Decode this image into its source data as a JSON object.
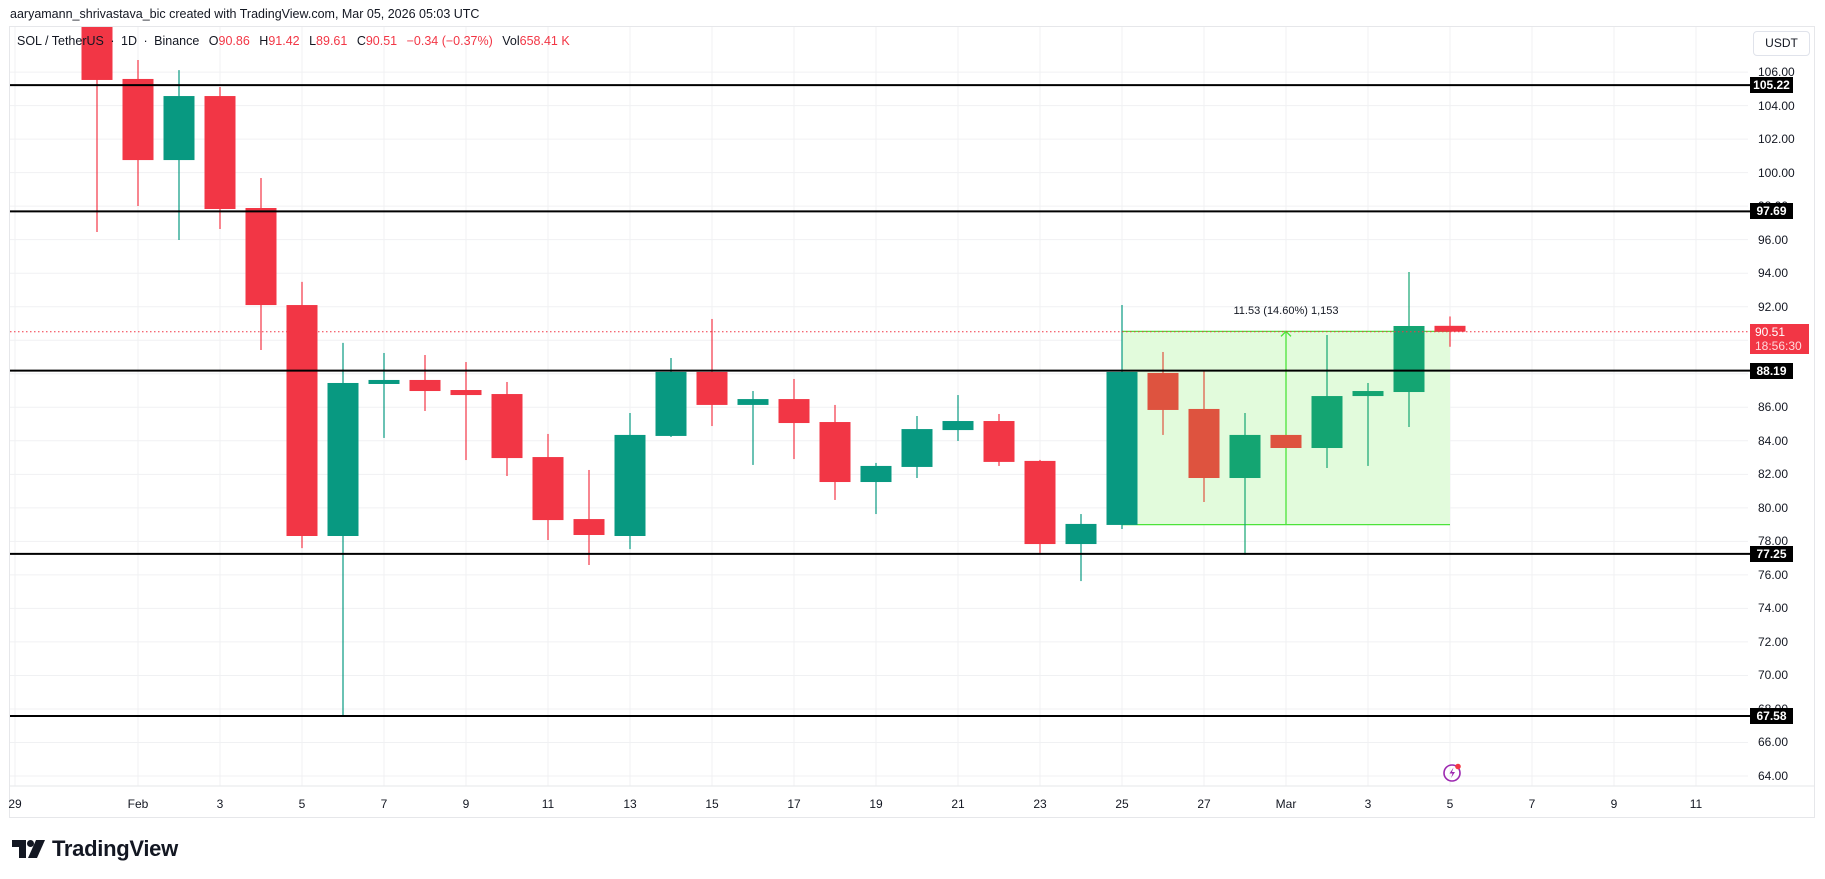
{
  "header": {
    "credit": "aaryamann_shrivastava_bic created with TradingView.com, Mar 05, 2026 05:03 UTC",
    "symbol": "SOL / TetherUS",
    "interval": "1D",
    "exchange": "Binance",
    "open_label": "O",
    "open": "90.86",
    "high_label": "H",
    "high": "91.42",
    "low_label": "L",
    "low": "89.61",
    "close_label": "C",
    "close": "90.51",
    "change": "−0.34 (−0.37%)",
    "vol_label": "Vol",
    "vol": "658.41 K",
    "separator": "·"
  },
  "price_axis": {
    "currency_button": "USDT",
    "last_price": "90.51",
    "countdown": "18:56:30"
  },
  "measure": {
    "label": "11.53 (14.60%) 1,153"
  },
  "logo": {
    "text": "TradingView"
  },
  "colors": {
    "up": "#089981",
    "down": "#f23645",
    "up_in_box": "#14a572",
    "down_in_box": "#de533f",
    "hline": "#000000",
    "measure_fill": "#e2fbdc",
    "measure_stroke": "#4ce33a",
    "last_price": "#f23645",
    "grid": "#f0f1f3"
  },
  "chart_data": {
    "type": "candlestick",
    "title": "SOL / TetherUS · 1D · Binance",
    "xlabel": "",
    "ylabel": "USDT",
    "ylim": [
      63.0,
      108.7
    ],
    "y_ticks": [
      64,
      66,
      68,
      70,
      72,
      74,
      76,
      78,
      80,
      82,
      84,
      86,
      88,
      90,
      92,
      94,
      96,
      98,
      100,
      102,
      104,
      106
    ],
    "x_ticks": [
      {
        "label": "29",
        "day": 0
      },
      {
        "label": "Feb",
        "day": 3
      },
      {
        "label": "3",
        "day": 5
      },
      {
        "label": "5",
        "day": 7
      },
      {
        "label": "7",
        "day": 9
      },
      {
        "label": "9",
        "day": 11
      },
      {
        "label": "11",
        "day": 13
      },
      {
        "label": "13",
        "day": 15
      },
      {
        "label": "15",
        "day": 17
      },
      {
        "label": "17",
        "day": 19
      },
      {
        "label": "19",
        "day": 21
      },
      {
        "label": "21",
        "day": 23
      },
      {
        "label": "23",
        "day": 25
      },
      {
        "label": "25",
        "day": 27
      },
      {
        "label": "27",
        "day": 29
      },
      {
        "label": "Mar",
        "day": 31
      },
      {
        "label": "3",
        "day": 33
      },
      {
        "label": "5",
        "day": 35
      },
      {
        "label": "7",
        "day": 37
      },
      {
        "label": "9",
        "day": 39
      },
      {
        "label": "11",
        "day": 41
      }
    ],
    "grid": true,
    "candles": [
      {
        "date": "Jan 31",
        "day": 2,
        "o": 108.7,
        "h": 108.7,
        "l": 96.46,
        "c": 105.53
      },
      {
        "date": "Feb 1",
        "day": 3,
        "o": 105.59,
        "h": 106.72,
        "l": 98.01,
        "c": 100.75
      },
      {
        "date": "Feb 2",
        "day": 4,
        "o": 100.75,
        "h": 106.12,
        "l": 95.98,
        "c": 104.57
      },
      {
        "date": "Feb 3",
        "day": 5,
        "o": 104.57,
        "h": 105.11,
        "l": 96.64,
        "c": 97.83
      },
      {
        "date": "Feb 4",
        "day": 6,
        "o": 97.89,
        "h": 99.68,
        "l": 89.42,
        "c": 92.1
      },
      {
        "date": "Feb 5",
        "day": 7,
        "o": 92.1,
        "h": 93.48,
        "l": 77.6,
        "c": 78.32
      },
      {
        "date": "Feb 6",
        "day": 8,
        "o": 78.32,
        "h": 89.84,
        "l": 67.64,
        "c": 87.45
      },
      {
        "date": "Feb 7",
        "day": 9,
        "o": 87.39,
        "h": 89.24,
        "l": 84.17,
        "c": 87.63
      },
      {
        "date": "Feb 8",
        "day": 10,
        "o": 87.63,
        "h": 89.12,
        "l": 85.78,
        "c": 86.97
      },
      {
        "date": "Feb 9",
        "day": 11,
        "o": 87.03,
        "h": 88.7,
        "l": 82.85,
        "c": 86.73
      },
      {
        "date": "Feb 10",
        "day": 12,
        "o": 86.79,
        "h": 87.51,
        "l": 81.9,
        "c": 82.97
      },
      {
        "date": "Feb 11",
        "day": 13,
        "o": 83.03,
        "h": 84.41,
        "l": 78.08,
        "c": 79.27
      },
      {
        "date": "Feb 12",
        "day": 14,
        "o": 79.33,
        "h": 82.26,
        "l": 76.59,
        "c": 78.38
      },
      {
        "date": "Feb 13",
        "day": 15,
        "o": 78.32,
        "h": 85.66,
        "l": 77.54,
        "c": 84.35
      },
      {
        "date": "Feb 14",
        "day": 16,
        "o": 84.29,
        "h": 88.94,
        "l": 84.23,
        "c": 88.11
      },
      {
        "date": "Feb 15",
        "day": 17,
        "o": 88.11,
        "h": 91.27,
        "l": 84.88,
        "c": 86.14
      },
      {
        "date": "Feb 16",
        "day": 18,
        "o": 86.14,
        "h": 86.97,
        "l": 82.56,
        "c": 86.49
      },
      {
        "date": "Feb 17",
        "day": 19,
        "o": 86.49,
        "h": 87.69,
        "l": 82.91,
        "c": 85.06
      },
      {
        "date": "Feb 18",
        "day": 20,
        "o": 85.12,
        "h": 86.14,
        "l": 80.47,
        "c": 81.54
      },
      {
        "date": "Feb 19",
        "day": 21,
        "o": 81.54,
        "h": 82.68,
        "l": 79.63,
        "c": 82.5
      },
      {
        "date": "Feb 20",
        "day": 22,
        "o": 82.44,
        "h": 85.48,
        "l": 81.78,
        "c": 84.7
      },
      {
        "date": "Feb 21",
        "day": 23,
        "o": 84.64,
        "h": 86.73,
        "l": 83.99,
        "c": 85.18
      },
      {
        "date": "Feb 22",
        "day": 24,
        "o": 85.18,
        "h": 85.6,
        "l": 82.5,
        "c": 82.74
      },
      {
        "date": "Feb 23",
        "day": 25,
        "o": 82.8,
        "h": 82.86,
        "l": 77.31,
        "c": 77.84
      },
      {
        "date": "Feb 24",
        "day": 26,
        "o": 77.84,
        "h": 79.63,
        "l": 75.63,
        "c": 79.04
      },
      {
        "date": "Feb 25",
        "day": 27,
        "o": 78.98,
        "h": 92.1,
        "l": 78.74,
        "c": 88.11
      },
      {
        "date": "Feb 26",
        "day": 28,
        "o": 88.05,
        "h": 89.3,
        "l": 84.35,
        "c": 85.84
      },
      {
        "date": "Feb 27",
        "day": 29,
        "o": 85.9,
        "h": 88.22,
        "l": 80.35,
        "c": 81.78
      },
      {
        "date": "Feb 28",
        "day": 30,
        "o": 81.78,
        "h": 85.66,
        "l": 77.19,
        "c": 84.35
      },
      {
        "date": "Mar 1",
        "day": 31,
        "o": 84.35,
        "h": 84.35,
        "l": 83.57,
        "c": 83.57
      },
      {
        "date": "Mar 2",
        "day": 32,
        "o": 83.57,
        "h": 90.31,
        "l": 82.38,
        "c": 86.67
      },
      {
        "date": "Mar 3",
        "day": 33,
        "o": 86.67,
        "h": 87.45,
        "l": 82.5,
        "c": 86.97
      },
      {
        "date": "Mar 4",
        "day": 34,
        "o": 86.91,
        "h": 94.07,
        "l": 84.82,
        "c": 90.85
      },
      {
        "date": "Mar 5",
        "day": 35,
        "o": 90.86,
        "h": 91.42,
        "l": 89.61,
        "c": 90.51
      }
    ],
    "horizontal_lines": [
      {
        "price": 105.22,
        "label": "105.22"
      },
      {
        "price": 97.69,
        "label": "97.69"
      },
      {
        "price": 88.19,
        "label": "88.19"
      },
      {
        "price": 77.25,
        "label": "77.25"
      },
      {
        "price": 67.58,
        "label": "67.58"
      }
    ],
    "last_price": 90.51,
    "measurement": {
      "from_day": 27,
      "to_day": 35,
      "low": 79.0,
      "high": 90.53,
      "change": 11.53,
      "change_pct": 14.6,
      "ticks": 1153
    }
  }
}
